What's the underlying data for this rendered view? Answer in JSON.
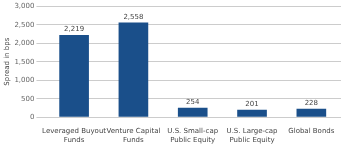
{
  "chart_data": {
    "type": "bar",
    "categories": [
      "Leveraged Buyout Funds",
      "Venture Capital Funds",
      "U.S. Small-cap\nPublic Equity",
      "U.S. Large-cap\nPublic Equity",
      "Global Bonds"
    ],
    "values": [
      2219,
      2558,
      254,
      201,
      228
    ],
    "value_labels": [
      "2,219",
      "2,558",
      "254",
      "201",
      "228"
    ],
    "data_labels": true,
    "color": "#1a4f8a",
    "ylabel": "Spread in bps",
    "ylim": [
      0,
      3000
    ],
    "yticks": [
      0,
      500,
      {
        "value": 1000,
        "label": "1,000"
      },
      {
        "value": 1500,
        "label": "1,500"
      },
      {
        "value": 2000,
        "label": "2,000"
      },
      {
        "value": 2500,
        "label": "2,500"
      },
      {
        "value": 3000,
        "label": "3,000"
      }
    ],
    "grid": true
  }
}
